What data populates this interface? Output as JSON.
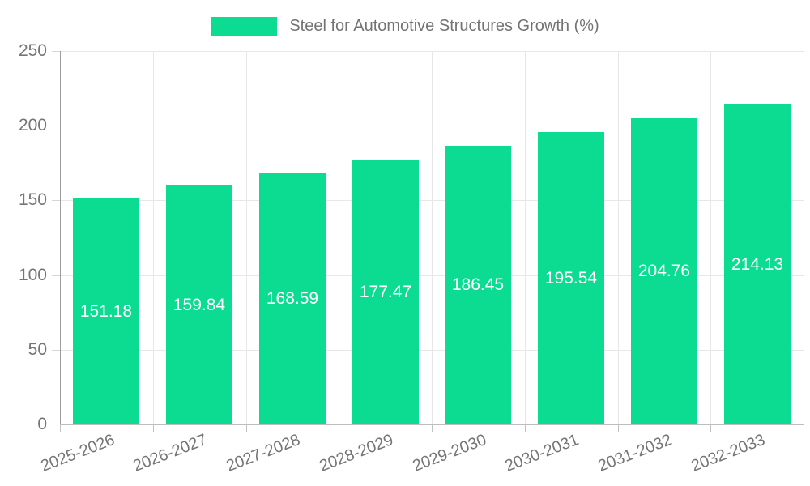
{
  "legend": {
    "label": "Steel for Automotive Structures Growth (%)"
  },
  "chart_data": {
    "type": "bar",
    "title": "Steel for Automotive Structures Growth (%)",
    "categories": [
      "2025-2026",
      "2026-2027",
      "2027-2028",
      "2028-2029",
      "2029-2030",
      "2030-2031",
      "2031-2032",
      "2032-2033"
    ],
    "series": [
      {
        "name": "Steel for Automotive Structures Growth (%)",
        "values": [
          151.18,
          159.84,
          168.59,
          177.47,
          186.45,
          195.54,
          204.76,
          214.13
        ],
        "value_labels": [
          "151.18",
          "159.84",
          "168.59",
          "177.47",
          "186.45",
          "195.54",
          "204.76",
          "214.13"
        ]
      }
    ],
    "xlabel": "",
    "ylabel": "",
    "ylim": [
      0,
      250
    ],
    "yticks": [
      0,
      50,
      100,
      150,
      200,
      250
    ],
    "grid": true,
    "legend_position": "top-center",
    "colors": {
      "bar": "#0bdc91",
      "bar_label_text": "#ffffff",
      "axis_text": "#757575",
      "legend_text": "#737373",
      "gridline": "#e7e7e7",
      "axis_line": "#9e9e9e"
    }
  }
}
